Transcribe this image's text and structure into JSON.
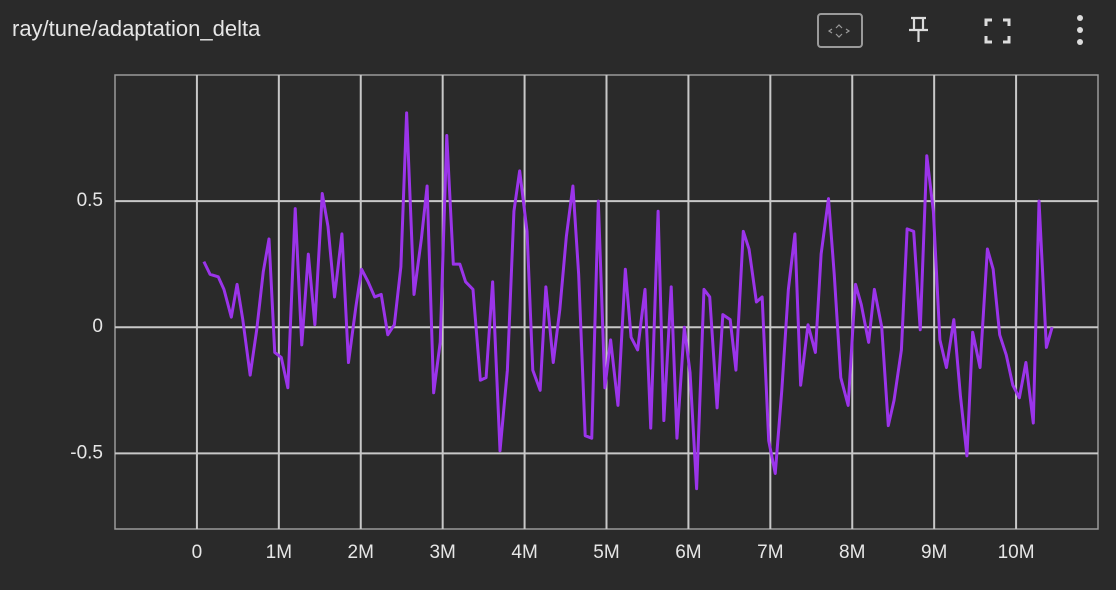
{
  "chart_data": {
    "type": "line",
    "title": "ray/tune/adaptation_delta",
    "color": "#9b34ea",
    "grid": true,
    "xlim": [
      -1000000,
      11000000
    ],
    "ylim": [
      -0.8,
      1.0
    ],
    "xticks": [
      0,
      {
        "value": 1000000,
        "label": "1M"
      },
      {
        "value": 2000000,
        "label": "2M"
      },
      {
        "value": 3000000,
        "label": "3M"
      },
      {
        "value": 4000000,
        "label": "4M"
      },
      {
        "value": 5000000,
        "label": "5M"
      },
      {
        "value": 6000000,
        "label": "6M"
      },
      {
        "value": 7000000,
        "label": "7M"
      },
      {
        "value": 8000000,
        "label": "8M"
      },
      {
        "value": 9000000,
        "label": "9M"
      },
      {
        "value": 10000000,
        "label": "10M"
      }
    ],
    "yticks": [
      -0.5,
      0,
      0.5
    ],
    "x": [
      85000,
      160000,
      260000,
      330000,
      420000,
      490000,
      560000,
      650000,
      730000,
      810000,
      880000,
      950000,
      1030000,
      1110000,
      1200000,
      1280000,
      1360000,
      1440000,
      1530000,
      1600000,
      1680000,
      1770000,
      1850000,
      1940000,
      2010000,
      2090000,
      2170000,
      2250000,
      2330000,
      2410000,
      2490000,
      2560000,
      2650000,
      2740000,
      2810000,
      2890000,
      2970000,
      3050000,
      3130000,
      3210000,
      3280000,
      3370000,
      3460000,
      3530000,
      3610000,
      3700000,
      3790000,
      3870000,
      3940000,
      4030000,
      4100000,
      4190000,
      4260000,
      4350000,
      4430000,
      4510000,
      4590000,
      4660000,
      4740000,
      4820000,
      4900000,
      4980000,
      5050000,
      5140000,
      5230000,
      5300000,
      5380000,
      5470000,
      5540000,
      5630000,
      5700000,
      5790000,
      5860000,
      5950000,
      6020000,
      6100000,
      6190000,
      6260000,
      6350000,
      6420000,
      6510000,
      6580000,
      6670000,
      6740000,
      6830000,
      6900000,
      6980000,
      7060000,
      7140000,
      7220000,
      7300000,
      7370000,
      7460000,
      7550000,
      7620000,
      7710000,
      7780000,
      7860000,
      7950000,
      8040000,
      8110000,
      8200000,
      8270000,
      8360000,
      8440000,
      8510000,
      8600000,
      8670000,
      8750000,
      8830000,
      8910000,
      8990000,
      9070000,
      9150000,
      9240000,
      9320000,
      9400000,
      9470000,
      9560000,
      9650000,
      9720000,
      9800000,
      9880000,
      9960000,
      10040000,
      10120000,
      10210000,
      10280000,
      10370000,
      10440000
    ],
    "values": [
      0.26,
      0.21,
      0.2,
      0.15,
      0.04,
      0.17,
      0.03,
      -0.19,
      -0.01,
      0.22,
      0.35,
      -0.1,
      -0.12,
      -0.24,
      0.47,
      -0.07,
      0.29,
      0.01,
      0.53,
      0.4,
      0.12,
      0.37,
      -0.14,
      0.08,
      0.23,
      0.18,
      0.12,
      0.13,
      -0.03,
      0.01,
      0.24,
      0.85,
      0.13,
      0.35,
      0.56,
      -0.26,
      -0.06,
      0.76,
      0.25,
      0.25,
      0.18,
      0.15,
      -0.21,
      -0.2,
      0.18,
      -0.49,
      -0.17,
      0.46,
      0.62,
      0.38,
      -0.17,
      -0.25,
      0.16,
      -0.14,
      0.07,
      0.36,
      0.56,
      0.21,
      -0.43,
      -0.44,
      0.5,
      -0.24,
      -0.05,
      -0.31,
      0.23,
      -0.04,
      -0.09,
      0.15,
      -0.4,
      0.46,
      -0.37,
      0.16,
      -0.44,
      0,
      -0.18,
      -0.64,
      0.15,
      0.12,
      -0.32,
      0.05,
      0.03,
      -0.17,
      0.38,
      0.31,
      0.1,
      0.12,
      -0.45,
      -0.58,
      -0.25,
      0.15,
      0.37,
      -0.23,
      0.01,
      -0.1,
      0.29,
      0.51,
      0.21,
      -0.2,
      -0.31,
      0.17,
      0.09,
      -0.06,
      0.15,
      0,
      -0.39,
      -0.29,
      -0.09,
      0.39,
      0.38,
      -0.01,
      0.68,
      0.46,
      -0.05,
      -0.16,
      0.03,
      -0.27,
      -0.51,
      -0.02,
      -0.16,
      0.31,
      0.23,
      -0.03,
      -0.11,
      -0.23,
      -0.28,
      -0.14,
      -0.38,
      0.5,
      -0.08,
      0
    ]
  }
}
